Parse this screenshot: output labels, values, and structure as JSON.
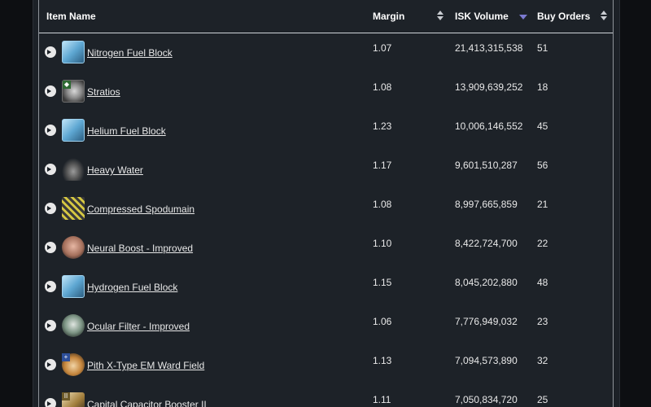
{
  "columns": {
    "item_name": "Item Name",
    "margin": "Margin",
    "isk_volume": "ISK Volume",
    "buy_orders": "Buy Orders"
  },
  "sort": {
    "active_column": "ISK Volume",
    "direction": "descending"
  },
  "rows": [
    {
      "name": "Nitrogen Fuel Block",
      "icon": "fuel-block-icon",
      "margin": "1.07",
      "isk_volume": "21,413,315,538",
      "buy_orders": "51"
    },
    {
      "name": "Stratios",
      "icon": "ship-icon",
      "margin": "1.08",
      "isk_volume": "13,909,639,252",
      "buy_orders": "18"
    },
    {
      "name": "Helium Fuel Block",
      "icon": "fuel-block-icon",
      "margin": "1.23",
      "isk_volume": "10,006,146,552",
      "buy_orders": "45"
    },
    {
      "name": "Heavy Water",
      "icon": "heavy-water-icon",
      "margin": "1.17",
      "isk_volume": "9,601,510,287",
      "buy_orders": "56"
    },
    {
      "name": "Compressed Spodumain",
      "icon": "ore-icon",
      "margin": "1.08",
      "isk_volume": "8,997,665,859",
      "buy_orders": "21"
    },
    {
      "name": "Neural Boost - Improved",
      "icon": "implant-icon",
      "margin": "1.10",
      "isk_volume": "8,422,724,700",
      "buy_orders": "22"
    },
    {
      "name": "Hydrogen Fuel Block",
      "icon": "fuel-block-icon",
      "margin": "1.15",
      "isk_volume": "8,045,202,880",
      "buy_orders": "48"
    },
    {
      "name": "Ocular Filter - Improved",
      "icon": "implant-icon",
      "margin": "1.06",
      "isk_volume": "7,776,949,032",
      "buy_orders": "23"
    },
    {
      "name": "Pith X-Type EM Ward Field",
      "icon": "shield-module-icon",
      "margin": "1.13",
      "isk_volume": "7,094,573,890",
      "buy_orders": "32"
    },
    {
      "name": "Capital Capacitor Booster II",
      "icon": "capacitor-module-icon",
      "margin": "1.11",
      "isk_volume": "7,050,834,720",
      "buy_orders": "25"
    }
  ]
}
